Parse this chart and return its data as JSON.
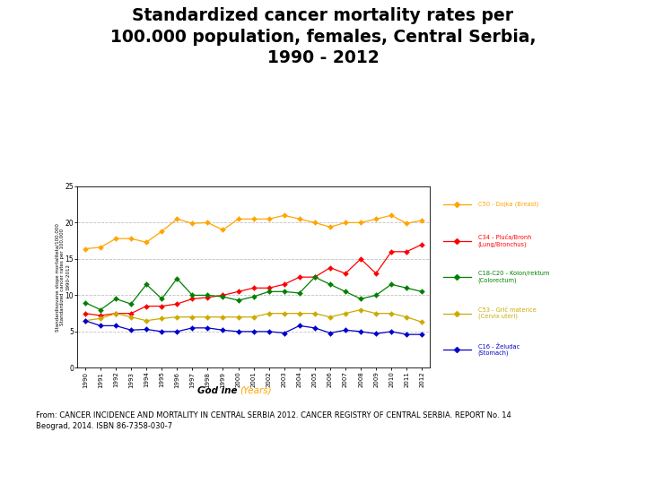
{
  "title": "Standardized cancer mortality rates per\n100.000 population, females, Central Serbia,\n1990 - 2012",
  "years": [
    1990,
    1991,
    1992,
    1993,
    1994,
    1995,
    1996,
    1997,
    1998,
    1999,
    2000,
    2001,
    2002,
    2003,
    2004,
    2005,
    2006,
    2007,
    2008,
    2009,
    2010,
    2011,
    2012
  ],
  "breast": [
    16.4,
    16.6,
    17.8,
    17.8,
    17.3,
    18.8,
    20.5,
    19.9,
    20.0,
    19.0,
    20.5,
    20.5,
    20.5,
    21.0,
    20.5,
    20.0,
    19.4,
    20.0,
    20.0,
    20.5,
    21.0,
    19.9,
    20.3
  ],
  "lung": [
    7.5,
    7.2,
    7.5,
    7.5,
    8.5,
    8.5,
    8.8,
    9.5,
    9.7,
    10.0,
    10.5,
    11.0,
    11.0,
    11.5,
    12.5,
    12.5,
    13.8,
    13.0,
    15.0,
    13.0,
    16.0,
    16.0,
    17.0
  ],
  "colorectum": [
    9.0,
    8.0,
    9.5,
    8.8,
    11.5,
    9.5,
    12.3,
    10.0,
    10.0,
    9.8,
    9.3,
    9.8,
    10.5,
    10.5,
    10.3,
    12.5,
    11.5,
    10.5,
    9.5,
    10.0,
    11.5,
    11.0,
    10.5
  ],
  "cervix": [
    6.5,
    6.8,
    7.5,
    7.0,
    6.5,
    6.8,
    7.0,
    7.0,
    7.0,
    7.0,
    7.0,
    7.0,
    7.5,
    7.5,
    7.5,
    7.5,
    7.0,
    7.5,
    8.0,
    7.5,
    7.5,
    7.0,
    6.3
  ],
  "stomach": [
    6.5,
    5.8,
    5.8,
    5.2,
    5.3,
    5.0,
    5.0,
    5.5,
    5.5,
    5.2,
    5.0,
    5.0,
    5.0,
    4.8,
    5.8,
    5.5,
    4.8,
    5.2,
    5.0,
    4.7,
    5.0,
    4.6,
    4.6
  ],
  "colors": {
    "breast": "#FFA500",
    "lung": "#FF0000",
    "colorectum": "#008000",
    "cervix": "#CCAA00",
    "stomach": "#0000CC"
  },
  "legend_labels": {
    "breast": "C50 - Dojka (Breast)",
    "lung": "C34 - Pluća/Bronh\n(Lung/Bronchus)",
    "colorectum": "C18-C20 - Kolon/rektum\n(Colorectum)",
    "cervix": "C53 - Grlć materice\n(Cervix uteri)",
    "stomach": "C16 - Želudac\n(Stomach)"
  },
  "ylabel": "Standardisovane stope mortaliteta/100.000\nStandardized cancer rates per 100,000\n1990-2012",
  "footnote": "From: CANCER INCIDENCE AND MORTALITY IN CENTRAL SERBIA 2012. CANCER REGISTRY OF CENTRAL SERBIA. REPORT No. 14\nBeograd, 2014. ISBN 86-7358-030-7",
  "ylim": [
    0,
    25
  ],
  "yticks": [
    0,
    5,
    10,
    15,
    20,
    25
  ]
}
